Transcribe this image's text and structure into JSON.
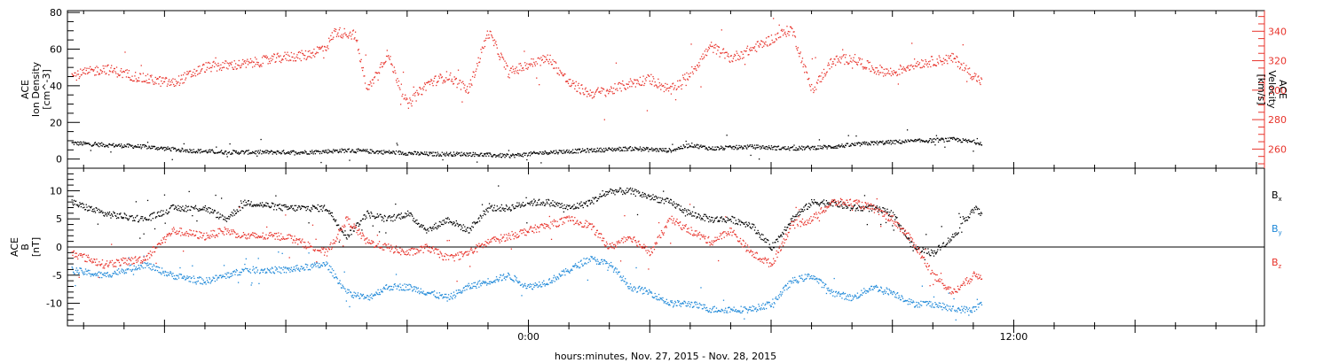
{
  "xlabel": "hours:minutes, Nov. 27, 2015 - Nov. 28, 2015",
  "x_ticks": [
    {
      "h": 0,
      "label": "0:00"
    },
    {
      "h": 12,
      "label": "12:00"
    }
  ],
  "x_range_hours": [
    -11.4,
    18.2
  ],
  "colors": {
    "black": "#000000",
    "red": "#e8332b",
    "blue": "#1e88d8"
  },
  "chart_data": [
    {
      "type": "scatter",
      "panel": "top",
      "ylabel_left": [
        "ACE",
        "Ion Density",
        "[cm^-3]"
      ],
      "ylabel_right": [
        "ACE",
        "Velocity",
        "[km/s]"
      ],
      "ylim_left": [
        -5,
        81
      ],
      "ylim_right": [
        247,
        354
      ],
      "yticks_left": [
        0,
        20,
        40,
        60,
        80
      ],
      "yticks_right": [
        260,
        280,
        300,
        320,
        340
      ],
      "grid": false,
      "series": [
        {
          "axis": "left",
          "color": "black",
          "x": [
            -11.3,
            -10.5,
            -9.5,
            -8.5,
            -7.5,
            -6.5,
            -5.5,
            -4.5,
            -3.5,
            -2.5,
            -1.5,
            -0.5,
            0.5,
            1.5,
            2.5,
            3.5,
            4.0,
            4.5,
            5.5,
            6.5,
            7.5,
            8.5,
            9.5,
            10.5,
            11.2
          ],
          "y": [
            9,
            8,
            7,
            5,
            4,
            4,
            4,
            5,
            4,
            3,
            3,
            2,
            4,
            5,
            6,
            5,
            8,
            6,
            7,
            6,
            7,
            9,
            10,
            11,
            9
          ]
        },
        {
          "axis": "right",
          "color": "red",
          "x": [
            -11.3,
            -10.5,
            -9.5,
            -8.8,
            -8,
            -7,
            -6,
            -5.5,
            -5,
            -4.8,
            -4.3,
            -4.0,
            -3.5,
            -3,
            -2.5,
            -2,
            -1.5,
            -1,
            -0.5,
            0,
            0.5,
            1,
            1.5,
            2,
            2.5,
            3,
            3.5,
            4,
            4.5,
            5,
            5.5,
            6,
            6.5,
            7,
            7.5,
            8,
            8.5,
            9,
            9.5,
            10,
            10.5,
            11,
            11.2
          ],
          "y": [
            310,
            315,
            308,
            305,
            316,
            318,
            323,
            324,
            330,
            340,
            338,
            300,
            325,
            290,
            305,
            310,
            300,
            340,
            312,
            318,
            322,
            305,
            298,
            300,
            305,
            308,
            300,
            312,
            330,
            322,
            328,
            335,
            342,
            300,
            320,
            322,
            315,
            312,
            318,
            320,
            322,
            310,
            306
          ]
        }
      ]
    },
    {
      "type": "scatter",
      "panel": "bottom",
      "ylabel_left": [
        "ACE",
        "B",
        "[nT]"
      ],
      "ylim": [
        -14,
        14
      ],
      "yticks": [
        -10,
        -5,
        0,
        5,
        10
      ],
      "zero_line": true,
      "grid": false,
      "legend": [
        "B",
        "B",
        "B"
      ],
      "legend_subscripts": [
        "x",
        "y",
        "z"
      ],
      "legend_position": "right",
      "series": [
        {
          "name": "Bx",
          "color": "black",
          "x": [
            -11.3,
            -10.5,
            -9.5,
            -8.8,
            -8,
            -7.5,
            -7,
            -6,
            -5,
            -4.5,
            -4,
            -3.5,
            -3,
            -2.5,
            -2,
            -1.5,
            -1,
            -0.5,
            0,
            0.5,
            1,
            1.5,
            2,
            2.5,
            3,
            3.5,
            4,
            4.5,
            5,
            5.5,
            6,
            6.5,
            7,
            7.5,
            8,
            8.5,
            9,
            9.5,
            10,
            10.5,
            11,
            11.2
          ],
          "y": [
            8,
            6,
            5,
            7,
            7,
            5,
            8,
            7,
            7,
            2,
            6,
            5,
            6,
            3,
            5,
            3,
            7,
            7,
            8,
            8,
            7,
            8,
            10,
            10,
            9,
            8,
            6,
            5,
            5,
            4,
            0,
            5,
            8,
            8,
            7,
            7,
            6,
            0,
            -1,
            2,
            7,
            6
          ]
        },
        {
          "name": "By",
          "color": "blue",
          "x": [
            -11.3,
            -10.5,
            -9.5,
            -8.8,
            -8,
            -7.5,
            -7,
            -6,
            -5,
            -4.5,
            -4,
            -3.5,
            -3,
            -2.5,
            -2,
            -1.5,
            -1,
            -0.5,
            0,
            0.5,
            1,
            1.5,
            2,
            2.5,
            3,
            3.5,
            4,
            4.5,
            5,
            5.5,
            6,
            6.5,
            7,
            7.5,
            8,
            8.5,
            9,
            9.5,
            10,
            10.5,
            11,
            11.2
          ],
          "y": [
            -4,
            -5,
            -3,
            -5,
            -6,
            -5,
            -4,
            -4,
            -3,
            -8,
            -9,
            -7,
            -7,
            -8,
            -9,
            -7,
            -6,
            -5,
            -7,
            -6,
            -4,
            -2,
            -3,
            -7,
            -8,
            -10,
            -10,
            -11,
            -11,
            -11,
            -10,
            -6,
            -5,
            -8,
            -9,
            -7,
            -8,
            -10,
            -10,
            -11,
            -11,
            -10
          ]
        },
        {
          "name": "Bz",
          "color": "red",
          "x": [
            -11.3,
            -10.5,
            -9.5,
            -8.8,
            -8,
            -7.5,
            -7,
            -6,
            -5,
            -4.5,
            -4,
            -3.5,
            -3,
            -2.5,
            -2,
            -1.5,
            -1,
            -0.5,
            0,
            0.5,
            1,
            1.5,
            2,
            2.5,
            3,
            3.5,
            4,
            4.5,
            5,
            5.5,
            6,
            6.5,
            7,
            7.5,
            8,
            8.5,
            9,
            9.5,
            10,
            10.5,
            11,
            11.2
          ],
          "y": [
            -1,
            -3,
            -2,
            3,
            2,
            3,
            2,
            2,
            -1,
            5,
            1,
            0,
            -1,
            0,
            -2,
            -1,
            1,
            2,
            3,
            4,
            5,
            4,
            0,
            2,
            -1,
            5,
            3,
            1,
            3,
            -1,
            -3,
            4,
            5,
            8,
            8,
            7,
            5,
            1,
            -5,
            -8,
            -5,
            -5
          ]
        }
      ]
    }
  ]
}
